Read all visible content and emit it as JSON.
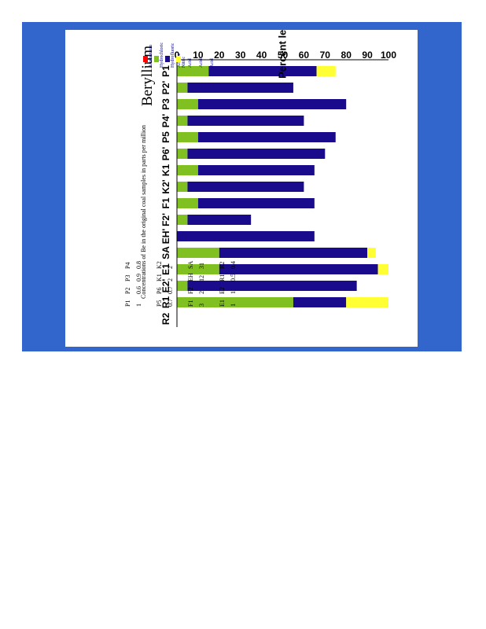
{
  "chart_data": {
    "type": "bar",
    "stacked": true,
    "orientation": "horizontal",
    "title": "Beryllium",
    "ylabel": "Percent leached",
    "xlim": [
      0,
      100
    ],
    "ticks": [
      "0",
      "10",
      "20",
      "30",
      "40",
      "50",
      "60",
      "70",
      "80",
      "90",
      "100"
    ],
    "categories": [
      "P1",
      "P2",
      "P3",
      "P4",
      "P5",
      "P6",
      "K1",
      "K2",
      "F1",
      "F2",
      "EH",
      "SA",
      "E1",
      "E2",
      "R1",
      "R2"
    ],
    "category_labels": [
      "P1",
      "P2'",
      "P3",
      "P4'",
      "P5",
      "P6'",
      "K1",
      "K2'",
      "F1",
      "F2'",
      "EH'",
      "SA",
      "E1",
      "E2'",
      "R1",
      "R2"
    ],
    "series": [
      {
        "name": "Ammonium Acetate",
        "color": "#ff0000",
        "values": [
          0,
          0,
          0,
          0,
          0,
          0,
          0,
          0,
          0,
          0,
          0,
          0,
          0,
          0,
          0,
          0
        ]
      },
      {
        "name": "Hydrochloric Acid",
        "color": "#80c020",
        "values": [
          15,
          5,
          10,
          5,
          10,
          5,
          10,
          5,
          10,
          5,
          0,
          20,
          20,
          5,
          55,
          0
        ]
      },
      {
        "name": "Hydrofluoric Acid",
        "color": "#1a0a8c",
        "values": [
          51,
          50,
          70,
          55,
          65,
          65,
          55,
          55,
          55,
          30,
          65,
          70,
          75,
          80,
          25,
          0
        ]
      },
      {
        "name": "Nitric Acid",
        "color": "#ffff33",
        "values": [
          9,
          0,
          0,
          0,
          0,
          0,
          0,
          0,
          0,
          0,
          0,
          4,
          5,
          0,
          20,
          0
        ]
      }
    ],
    "legend_placement": "left",
    "grid": false
  },
  "legend": [
    {
      "line1": "Ammonium",
      "line2": "Acetate"
    },
    {
      "line1": "Hydrochloric",
      "line2": "Acid"
    },
    {
      "line1": "Hydrofluoric",
      "line2": "Acid"
    },
    {
      "line1": "Nitric",
      "line2": "Acid"
    }
  ],
  "concentrations": {
    "heading": "Concentrations of Be in the original coal samples in parts per million",
    "columns": [
      [
        {
          "k": "P1",
          "v": "1"
        },
        {
          "k": "P2",
          "v": "0.6"
        },
        {
          "k": "P3",
          "v": "0.9"
        },
        {
          "k": "P4",
          "v": "0.8"
        }
      ],
      [
        {
          "k": "P5",
          "v": "0.7"
        },
        {
          "k": "P6",
          "v": "0.7"
        },
        {
          "k": "K1",
          "v": "2"
        },
        {
          "k": "K2",
          "v": "2"
        }
      ],
      [
        {
          "k": "F1",
          "v": "3"
        },
        {
          "k": "F2",
          "v": "2"
        },
        {
          "k": "EH",
          "v": "12"
        },
        {
          "k": "SA",
          "v": "31"
        }
      ],
      [
        {
          "k": "E1",
          "v": "1"
        },
        {
          "k": "E2",
          "v": "1"
        },
        {
          "k": "R1",
          "v": "0.5"
        },
        {
          "k": "R2",
          "v": "0.4"
        }
      ]
    ]
  }
}
